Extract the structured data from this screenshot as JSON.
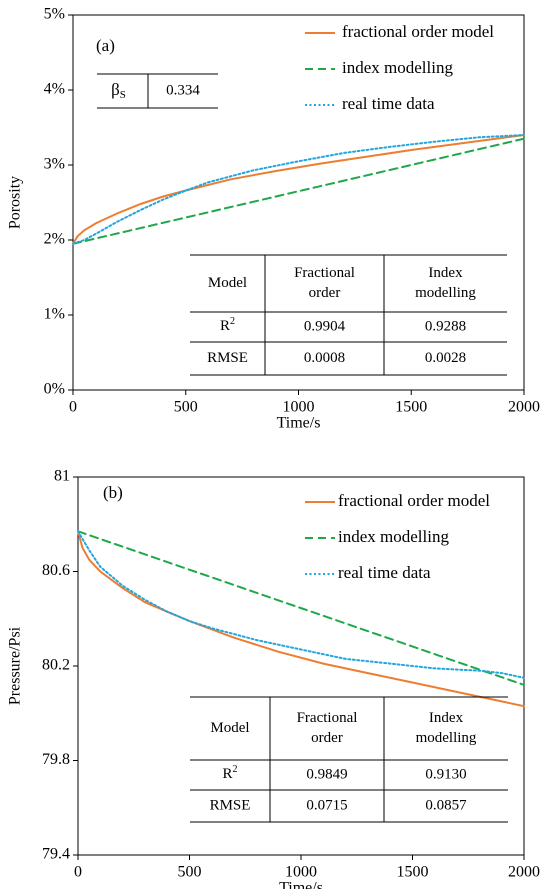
{
  "chart_data": [
    {
      "type": "line",
      "panel_label": "(a)",
      "xlabel": "Time/s",
      "ylabel": "Porosity",
      "xlim": [
        0,
        2000
      ],
      "ylim": [
        0,
        0.05
      ],
      "x_ticks": [
        0,
        500,
        1000,
        1500,
        2000
      ],
      "x_tick_labels": [
        "0",
        "500",
        "1000",
        "1500",
        "2000"
      ],
      "y_ticks": [
        0,
        0.01,
        0.02,
        0.03,
        0.04,
        0.05
      ],
      "y_tick_labels": [
        "0%",
        "1%",
        "2%",
        "3%",
        "4%",
        "5%"
      ],
      "grid": false,
      "legend_position": "top-right",
      "series": [
        {
          "name": "fractional order model",
          "color": "#ED7D31",
          "dash": "solid",
          "x": [
            0,
            20,
            50,
            100,
            200,
            300,
            400,
            500,
            700,
            900,
            1100,
            1300,
            1500,
            1700,
            1900,
            2000
          ],
          "y": [
            0.0195,
            0.0205,
            0.0213,
            0.0222,
            0.0236,
            0.0248,
            0.0258,
            0.0266,
            0.0281,
            0.0292,
            0.0302,
            0.0311,
            0.032,
            0.0328,
            0.0336,
            0.034
          ]
        },
        {
          "name": "index modelling",
          "color": "#1FA84A",
          "dash": "dashed",
          "x": [
            0,
            2000
          ],
          "y": [
            0.0195,
            0.0335
          ]
        },
        {
          "name": "real time data",
          "color": "#21A6DE",
          "dash": "dotted",
          "x": [
            0,
            50,
            100,
            200,
            300,
            400,
            500,
            600,
            800,
            1000,
            1200,
            1400,
            1600,
            1800,
            2000
          ],
          "y": [
            0.0195,
            0.02,
            0.0208,
            0.0225,
            0.024,
            0.0254,
            0.0266,
            0.0277,
            0.0293,
            0.0305,
            0.0316,
            0.0324,
            0.0331,
            0.0337,
            0.034
          ]
        }
      ],
      "param_table": {
        "symbol": "β",
        "subscript": "S",
        "value": "0.334"
      },
      "metrics_table": {
        "header": [
          "Model",
          "Fractional order",
          "Index modelling"
        ],
        "r2_label": "R",
        "r2_sup": "2",
        "r2_values": [
          "0.9904",
          "0.9288"
        ],
        "rmse_label": "RMSE",
        "rmse_values": [
          "0.0008",
          "0.0028"
        ]
      }
    },
    {
      "type": "line",
      "panel_label": "(b)",
      "xlabel": "Time/s",
      "ylabel": "Pressure/Psi",
      "xlim": [
        0,
        2000
      ],
      "ylim": [
        79.4,
        81
      ],
      "x_ticks": [
        0,
        500,
        1000,
        1500,
        2000
      ],
      "x_tick_labels": [
        "0",
        "500",
        "1000",
        "1500",
        "2000"
      ],
      "y_ticks": [
        79.4,
        79.8,
        80.2,
        80.6,
        81
      ],
      "y_tick_labels": [
        "79.4",
        "79.8",
        "80.2",
        "80.6",
        "81"
      ],
      "grid": false,
      "legend_position": "top-right",
      "series": [
        {
          "name": "fractional order model",
          "color": "#ED7D31",
          "dash": "solid",
          "x": [
            0,
            20,
            50,
            100,
            200,
            300,
            400,
            500,
            700,
            900,
            1100,
            1300,
            1500,
            1700,
            1900,
            2000
          ],
          "y": [
            80.77,
            80.7,
            80.65,
            80.6,
            80.53,
            80.47,
            80.43,
            80.39,
            80.32,
            80.26,
            80.21,
            80.17,
            80.13,
            80.09,
            80.05,
            80.03
          ]
        },
        {
          "name": "index modelling",
          "color": "#1FA84A",
          "dash": "dashed",
          "x": [
            0,
            2000
          ],
          "y": [
            80.77,
            80.12
          ]
        },
        {
          "name": "real time data",
          "color": "#21A6DE",
          "dash": "dotted",
          "x": [
            0,
            50,
            100,
            200,
            300,
            400,
            500,
            600,
            800,
            1000,
            1100,
            1200,
            1400,
            1600,
            1800,
            1900,
            2000
          ],
          "y": [
            80.77,
            80.69,
            80.62,
            80.54,
            80.48,
            80.43,
            80.39,
            80.36,
            80.31,
            80.27,
            80.25,
            80.23,
            80.21,
            80.19,
            80.18,
            80.17,
            80.15
          ]
        }
      ],
      "metrics_table": {
        "header": [
          "Model",
          "Fractional order",
          "Index modelling"
        ],
        "r2_label": "R",
        "r2_sup": "2",
        "r2_values": [
          "0.9849",
          "0.9130"
        ],
        "rmse_label": "RMSE",
        "rmse_values": [
          "0.0715",
          "0.0857"
        ]
      }
    }
  ]
}
